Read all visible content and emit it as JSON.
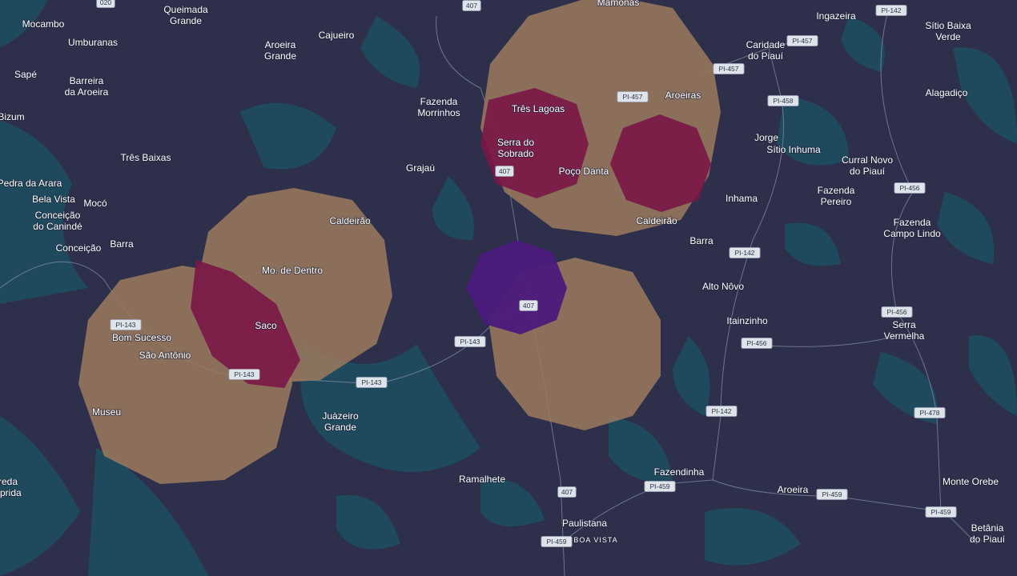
{
  "places": [
    [
      "Mocambo"
    ],
    [
      "Queimada",
      "Grande"
    ],
    [
      "Umburanas"
    ],
    [
      "Aroeira",
      "Grande"
    ],
    [
      "Cajueiro"
    ],
    [
      "Mamonas"
    ],
    [
      "Ingazeira"
    ],
    [
      "Sítio Baixa",
      "Verde"
    ],
    [
      "Caridade",
      "do Piauí"
    ],
    [
      "Sapé"
    ],
    [
      "Barreira",
      "da Aroeira"
    ],
    [
      "Bizum"
    ],
    [
      "Fazenda",
      "Morrinhos"
    ],
    [
      "Três Lagoas"
    ],
    [
      "Aroeiras"
    ],
    [
      "Alagadiço"
    ],
    [
      "Três Baixas"
    ],
    [
      "Serra do",
      "Sobrado"
    ],
    [
      "Jorge"
    ],
    [
      "Sítio Inhuma"
    ],
    [
      "Curral Novo",
      "do Piauí"
    ],
    [
      "Grajaú"
    ],
    [
      "Poço Danta"
    ],
    [
      "Pedra da Arara"
    ],
    [
      "Bela Vista"
    ],
    [
      "Mocó"
    ],
    [
      "Inhama"
    ],
    [
      "Fazenda",
      "Pereiro"
    ],
    [
      "Conceição",
      "do Canindé"
    ],
    [
      "Caldeirão"
    ],
    [
      "Caldeirão"
    ],
    [
      "Fazenda",
      "Campo Lindo"
    ],
    [
      "Barra"
    ],
    [
      "Barra"
    ],
    [
      "Conceição"
    ],
    [
      "Mo. de Dentro"
    ],
    [
      "Alto Nôvo"
    ],
    [
      "Saco"
    ],
    [
      "Bom Sucesso"
    ],
    [
      "Itainzinho"
    ],
    [
      "Serra",
      "Vermelha"
    ],
    [
      "São Antônio"
    ],
    [
      "Museu"
    ],
    [
      "Juàzeiro",
      "Grande"
    ],
    [
      "Ramalhete"
    ],
    [
      "Fazendinha"
    ],
    [
      "Aroeira"
    ],
    [
      "Monte Orebe"
    ],
    [
      "Paulistana"
    ],
    [
      "BOA VISTA"
    ],
    [
      "Betânia",
      "do Piauí"
    ],
    [
      "reda",
      "aprida"
    ]
  ],
  "shields": [
    "020",
    "407",
    "PI-142",
    "PI-457",
    "PI-457",
    "PI-457",
    "PI-458",
    "407",
    "PI-456",
    "PI-142",
    "407",
    "PI-456",
    "PI-143",
    "PI-143",
    "PI-456",
    "PI-143",
    "PI-143",
    "PI-142",
    "PI-478",
    "PI-459",
    "407",
    "PI-459",
    "PI-459",
    "PI-459"
  ]
}
